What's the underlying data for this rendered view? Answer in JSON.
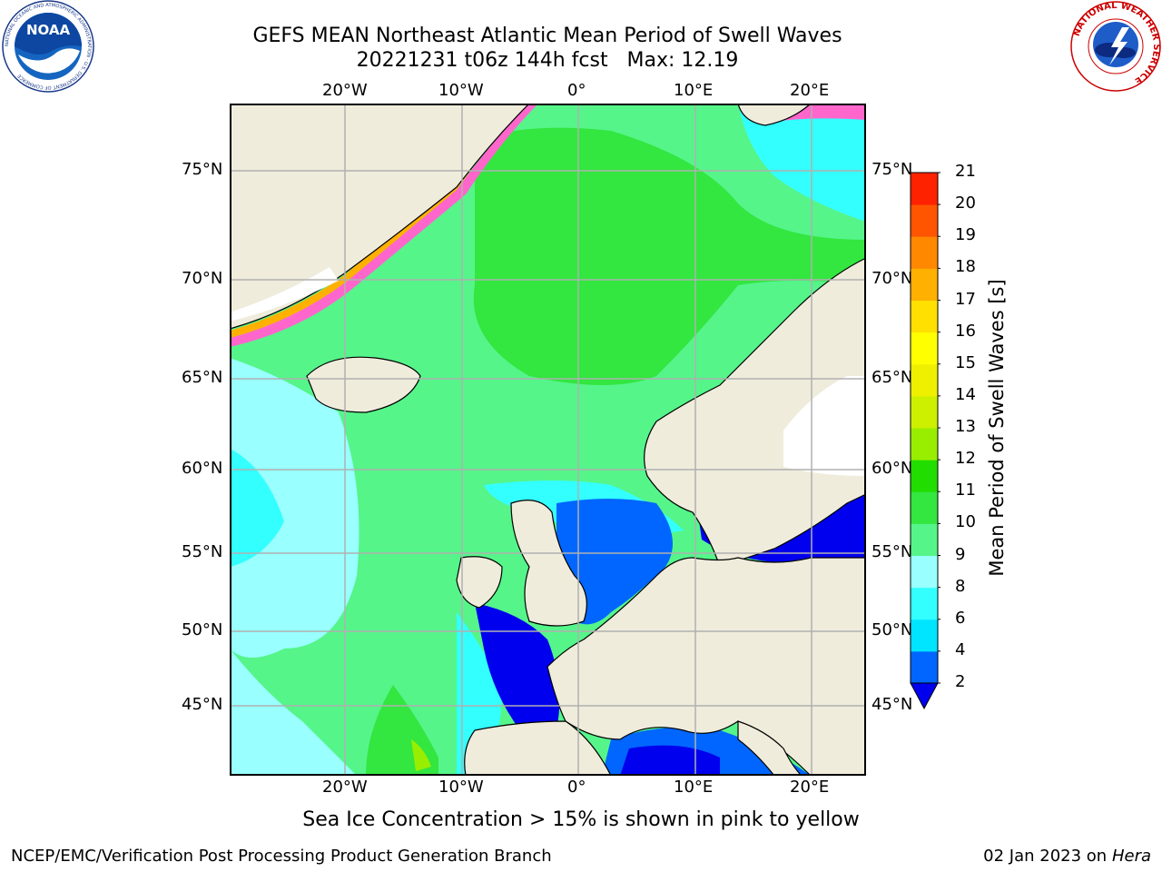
{
  "title": {
    "line1": "GEFS MEAN Northeast Atlantic Mean Period of Swell Waves",
    "line2": "20221231 t06z 144h fcst   Max: 12.19"
  },
  "map": {
    "lon_labels": [
      "20°W",
      "10°W",
      "0°",
      "10°E",
      "20°E"
    ],
    "lat_labels": [
      "75°N",
      "70°N",
      "65°N",
      "60°N",
      "55°N",
      "50°N",
      "45°N"
    ],
    "colors": {
      "land": "#efecdc",
      "sea_ice": "#ffffff",
      "grid": "#b0b0b0",
      "coast": "#000000"
    }
  },
  "colorbar": {
    "label": "Mean Period of Swell Waves [s]",
    "ticks": [
      "2",
      "4",
      "6",
      "8",
      "9",
      "10",
      "11",
      "12",
      "13",
      "14",
      "15",
      "16",
      "17",
      "18",
      "19",
      "20",
      "21"
    ],
    "colors": [
      "#0066ff",
      "#00e5ff",
      "#33ffff",
      "#99ffff",
      "#55f58a",
      "#33e640",
      "#22dd00",
      "#99ee00",
      "#ccf000",
      "#eef000",
      "#ffff00",
      "#ffe000",
      "#ffb000",
      "#ff8800",
      "#ff5500",
      "#ff2200",
      "#ff0000"
    ],
    "extend_color": "#0000ee"
  },
  "caption": "Sea Ice Concentration > 15% is shown in pink to yellow",
  "footer": {
    "left": "NCEP/EMC/Verification Post Processing Product Generation Branch",
    "right_prefix": "02 Jan 2023 on ",
    "right_host": "Hera"
  },
  "logos": {
    "noaa_text": "NOAA",
    "noaa_ring": "NATIONAL OCEANIC AND ATMOSPHERIC ADMINISTRATION · U.S. DEPARTMENT OF COMMERCE",
    "nws_ring": "NATIONAL WEATHER SERVICE"
  }
}
